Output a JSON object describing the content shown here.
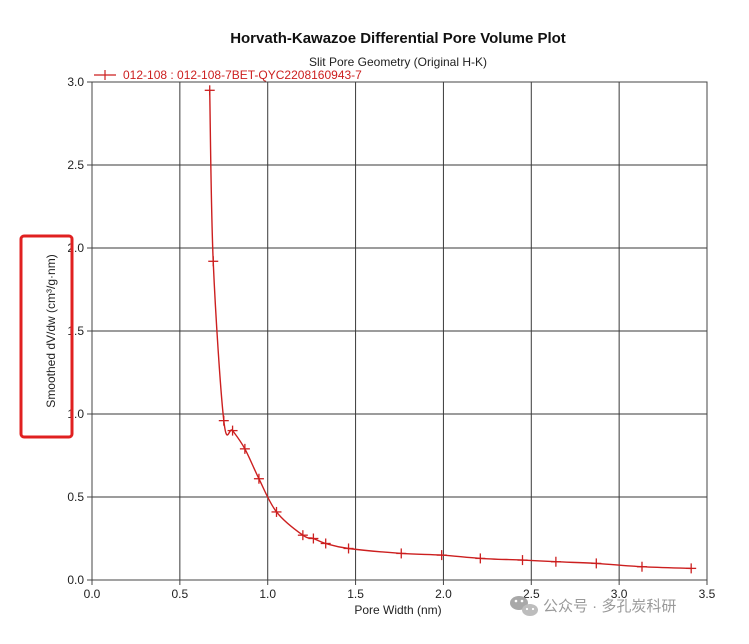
{
  "chart_data": {
    "type": "line",
    "title": "Horvath-Kawazoe Differential Pore Volume Plot",
    "subtitle": "Slit Pore Geometry (Original H-K)",
    "xlabel": "Pore Width (nm)",
    "ylabel": "Smoothed dV/dw (cm³/g·nm)",
    "xlim": [
      0.0,
      3.5
    ],
    "ylim": [
      0.0,
      3.0
    ],
    "xticks": [
      "0.0",
      "0.5",
      "1.0",
      "1.5",
      "2.0",
      "2.5",
      "3.0",
      "3.5"
    ],
    "yticks": [
      "0.0",
      "0.5",
      "1.0",
      "1.5",
      "2.0",
      "2.5",
      "3.0"
    ],
    "grid": true,
    "legend_position": "top-left",
    "series": [
      {
        "name": "012-108 : 012-108-7BET-QYC2208160943-7",
        "color": "#cc1f1f",
        "x": [
          0.67,
          0.69,
          0.75,
          0.8,
          0.87,
          0.95,
          1.05,
          1.2,
          1.26,
          1.33,
          1.46,
          1.76,
          1.99,
          2.21,
          2.45,
          2.64,
          2.87,
          3.13,
          3.41
        ],
        "y": [
          2.95,
          1.92,
          0.96,
          0.9,
          0.79,
          0.61,
          0.41,
          0.27,
          0.25,
          0.22,
          0.19,
          0.16,
          0.15,
          0.13,
          0.12,
          0.11,
          0.1,
          0.08,
          0.07
        ]
      }
    ]
  },
  "watermark": {
    "text": "公众号 · 多孔炭科研",
    "icon": "wechat-icon"
  },
  "highlight_box_color": "#e02020"
}
